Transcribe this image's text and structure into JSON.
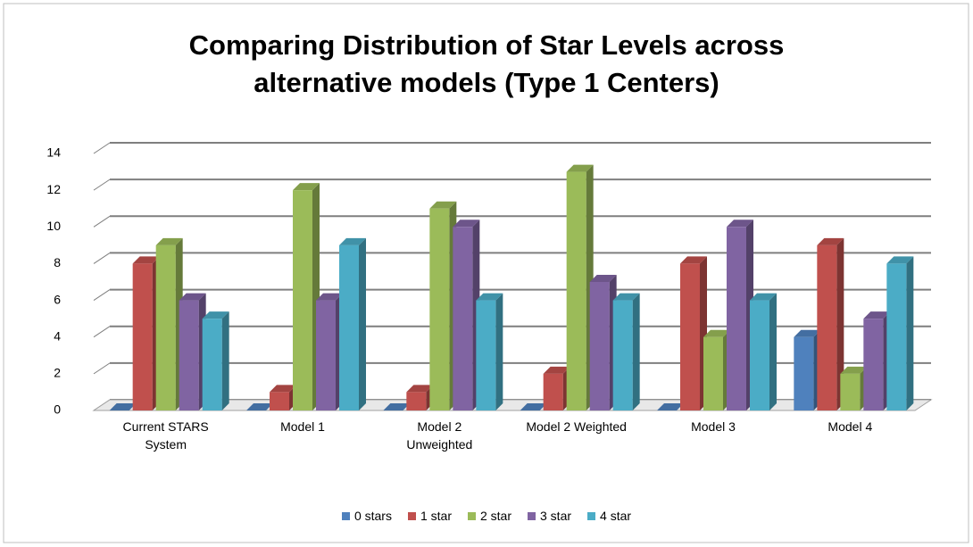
{
  "chart_data": {
    "type": "bar3d",
    "title": "Comparing Distribution of Star Levels across alternative models (Type 1 Centers)",
    "categories": [
      "Current STARS System",
      "Model 1",
      "Model 2 Unweighted",
      "Model 2 Weighted",
      "Model 3",
      "Model 4"
    ],
    "series": [
      {
        "name": "0 stars",
        "color": "#4f81bd",
        "values": [
          0,
          0,
          0,
          0,
          0,
          4
        ]
      },
      {
        "name": "1 star",
        "color": "#c0504d",
        "values": [
          8,
          1,
          1,
          2,
          8,
          9
        ]
      },
      {
        "name": "2 star",
        "color": "#9bbb59",
        "values": [
          9,
          12,
          11,
          13,
          4,
          2
        ]
      },
      {
        "name": "3 star",
        "color": "#8064a2",
        "values": [
          6,
          6,
          10,
          7,
          10,
          5
        ]
      },
      {
        "name": "4 star",
        "color": "#4bacc6",
        "values": [
          5,
          9,
          6,
          6,
          6,
          8
        ]
      }
    ],
    "ylim": [
      0,
      14
    ],
    "yticks": [
      0,
      2,
      4,
      6,
      8,
      10,
      12,
      14
    ],
    "grid": true,
    "legend": "bottom"
  }
}
